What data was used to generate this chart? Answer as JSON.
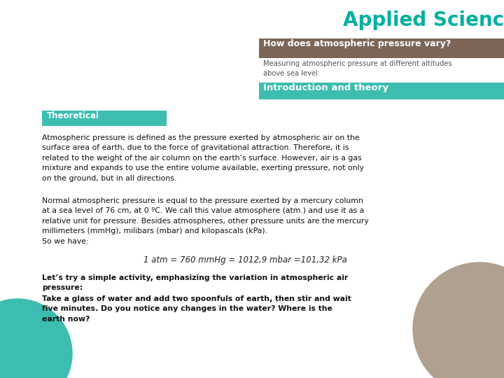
{
  "title": "Applied Sciences",
  "title_color": "#00B0A0",
  "header_box_text": "How does atmospheric pressure vary?",
  "header_box_color": "#7D6558",
  "header_box_text_color": "#FFFFFF",
  "subtitle_text": "Measuring atmospheric pressure at different altitudes\nabove sea level",
  "subtitle_color": "#555555",
  "intro_box_text": "Introduction and theory",
  "intro_box_color": "#3DBDB0",
  "intro_box_text_color": "#FFFFFF",
  "theoretical_box_text": "Theoretical",
  "theoretical_box_color": "#3DBDB0",
  "theoretical_box_text_color": "#FFFFFF",
  "body_text1": "Atmospheric pressure is defined as the pressure exerted by atmospheric air on the\nsurface area of earth, due to the force of gravitational attraction. Therefore, it is\nrelated to the weight of the air column on the earth’s surface. However, air is a gas\nmixture and expands to use the entire volume available, exerting pressure, not only\non the ground, but in all directions.",
  "body_text2": "Normal atmospheric pressure is equal to the pressure exerted by a mercury column\nat a sea level of 76 cm, at 0 ºC. We call this value atmosphere (atm.) and use it as a\nrelative unit for pressure. Besides atmospheres, other pressure units are the mercury\nmillimeters (mmHg), milibars (mbar) and kilopascals (kPa).\nSo we have:",
  "formula_text": "1 atm = 760 mmHg = 1012,9 mbar =101,32 kPa",
  "activity_title": "Let’s try a simple activity, emphasizing the variation in atmospheric air\npressure:",
  "activity_body": "Take a glass of water and add two spoonfuls of earth, then stir and wait\nfive minutes. Do you notice any changes in the water? Where is the\nearth now?",
  "circle_teal_color": "#3DBDB0",
  "circle_brown_color": "#B0A090",
  "background_color": "#FFFFFF"
}
